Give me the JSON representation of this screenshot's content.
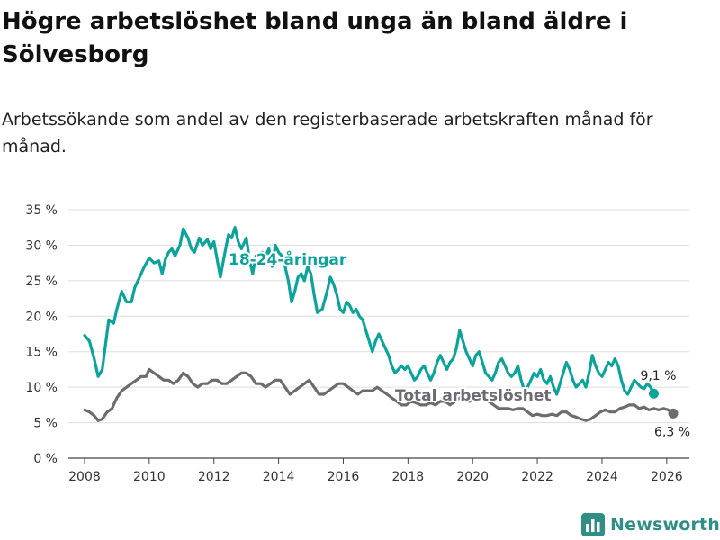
{
  "title": "Högre arbetslöshet bland unga än bland äldre i Sölvesborg",
  "subtitle": "Arbetssökande som andel av den registerbaserade arbetskraften månad för månad.",
  "brand": {
    "name": "Newsworthy",
    "icon": "bar-chart-logo-icon"
  },
  "colors": {
    "youth": "#0ca39a",
    "total": "#6d6a72",
    "axis": "#444444",
    "grid": "#dddddd",
    "brand": "#2f8f86"
  },
  "chart_data": {
    "type": "line",
    "title": "",
    "xlabel": "",
    "ylabel": "",
    "ylim": [
      0,
      35
    ],
    "xlim": [
      2007.5,
      2026.7
    ],
    "y_ticks": [
      0,
      5,
      10,
      15,
      20,
      25,
      30,
      35
    ],
    "y_tick_labels": [
      "0 %",
      "5 %",
      "10 %",
      "15 %",
      "20 %",
      "25 %",
      "30 %",
      "35 %"
    ],
    "x_ticks": [
      2008,
      2010,
      2012,
      2014,
      2016,
      2018,
      2020,
      2022,
      2024,
      2026
    ],
    "x_tick_labels": [
      "2008",
      "2010",
      "2012",
      "2014",
      "2016",
      "2018",
      "2020",
      "2022",
      "2024",
      "2026"
    ],
    "series": [
      {
        "name": "18-24-åringar",
        "label": "18-24-åringar",
        "color": "#0ca39a",
        "end_label": "9,1 %",
        "points": [
          [
            2008.0,
            17.3
          ],
          [
            2008.15,
            16.5
          ],
          [
            2008.3,
            14.0
          ],
          [
            2008.42,
            11.5
          ],
          [
            2008.55,
            12.5
          ],
          [
            2008.65,
            16.0
          ],
          [
            2008.75,
            19.5
          ],
          [
            2008.9,
            19.0
          ],
          [
            2009.0,
            21.0
          ],
          [
            2009.15,
            23.5
          ],
          [
            2009.3,
            22.0
          ],
          [
            2009.45,
            22.0
          ],
          [
            2009.55,
            24.0
          ],
          [
            2009.7,
            25.5
          ],
          [
            2009.85,
            27.0
          ],
          [
            2010.0,
            28.2
          ],
          [
            2010.15,
            27.5
          ],
          [
            2010.3,
            27.8
          ],
          [
            2010.4,
            26.0
          ],
          [
            2010.5,
            28.0
          ],
          [
            2010.6,
            29.0
          ],
          [
            2010.7,
            29.5
          ],
          [
            2010.8,
            28.5
          ],
          [
            2010.95,
            30.0
          ],
          [
            2011.05,
            32.3
          ],
          [
            2011.2,
            31.0
          ],
          [
            2011.3,
            29.5
          ],
          [
            2011.4,
            29.0
          ],
          [
            2011.55,
            31.0
          ],
          [
            2011.65,
            30.0
          ],
          [
            2011.8,
            30.8
          ],
          [
            2011.9,
            29.5
          ],
          [
            2012.0,
            30.5
          ],
          [
            2012.1,
            28.0
          ],
          [
            2012.2,
            25.5
          ],
          [
            2012.3,
            28.0
          ],
          [
            2012.45,
            31.5
          ],
          [
            2012.55,
            31.0
          ],
          [
            2012.65,
            32.5
          ],
          [
            2012.75,
            30.5
          ],
          [
            2012.85,
            29.5
          ],
          [
            2013.0,
            31.0
          ],
          [
            2013.1,
            28.0
          ],
          [
            2013.2,
            26.0
          ],
          [
            2013.3,
            28.5
          ],
          [
            2013.4,
            28.8
          ],
          [
            2013.5,
            29.0
          ],
          [
            2013.6,
            28.5
          ],
          [
            2013.7,
            29.5
          ],
          [
            2013.8,
            27.0
          ],
          [
            2013.9,
            30.0
          ],
          [
            2014.0,
            29.0
          ],
          [
            2014.1,
            28.5
          ],
          [
            2014.2,
            27.0
          ],
          [
            2014.3,
            25.0
          ],
          [
            2014.4,
            22.0
          ],
          [
            2014.5,
            23.5
          ],
          [
            2014.6,
            25.5
          ],
          [
            2014.7,
            26.0
          ],
          [
            2014.8,
            25.0
          ],
          [
            2014.9,
            27.0
          ],
          [
            2015.0,
            26.0
          ],
          [
            2015.1,
            23.0
          ],
          [
            2015.2,
            20.5
          ],
          [
            2015.35,
            21.0
          ],
          [
            2015.5,
            23.5
          ],
          [
            2015.6,
            25.5
          ],
          [
            2015.7,
            24.5
          ],
          [
            2015.8,
            23.0
          ],
          [
            2015.9,
            21.0
          ],
          [
            2016.0,
            20.5
          ],
          [
            2016.1,
            22.0
          ],
          [
            2016.2,
            21.5
          ],
          [
            2016.3,
            20.5
          ],
          [
            2016.4,
            21.0
          ],
          [
            2016.5,
            20.0
          ],
          [
            2016.6,
            19.5
          ],
          [
            2016.7,
            18.0
          ],
          [
            2016.8,
            16.5
          ],
          [
            2016.9,
            15.0
          ],
          [
            2017.0,
            16.5
          ],
          [
            2017.1,
            17.5
          ],
          [
            2017.2,
            16.5
          ],
          [
            2017.3,
            15.5
          ],
          [
            2017.4,
            14.5
          ],
          [
            2017.5,
            13.0
          ],
          [
            2017.6,
            12.0
          ],
          [
            2017.7,
            12.5
          ],
          [
            2017.8,
            13.0
          ],
          [
            2017.9,
            12.5
          ],
          [
            2018.0,
            13.0
          ],
          [
            2018.1,
            12.0
          ],
          [
            2018.2,
            11.0
          ],
          [
            2018.3,
            11.5
          ],
          [
            2018.4,
            12.5
          ],
          [
            2018.5,
            13.0
          ],
          [
            2018.6,
            12.0
          ],
          [
            2018.7,
            11.0
          ],
          [
            2018.8,
            12.0
          ],
          [
            2018.9,
            13.5
          ],
          [
            2019.0,
            14.5
          ],
          [
            2019.1,
            13.5
          ],
          [
            2019.2,
            12.5
          ],
          [
            2019.3,
            13.5
          ],
          [
            2019.4,
            14.0
          ],
          [
            2019.5,
            15.5
          ],
          [
            2019.6,
            18.0
          ],
          [
            2019.7,
            16.5
          ],
          [
            2019.8,
            15.0
          ],
          [
            2019.9,
            14.0
          ],
          [
            2020.0,
            13.0
          ],
          [
            2020.1,
            14.5
          ],
          [
            2020.2,
            15.0
          ],
          [
            2020.3,
            13.5
          ],
          [
            2020.4,
            12.0
          ],
          [
            2020.5,
            11.5
          ],
          [
            2020.6,
            11.0
          ],
          [
            2020.7,
            12.0
          ],
          [
            2020.8,
            13.5
          ],
          [
            2020.9,
            14.0
          ],
          [
            2021.0,
            13.0
          ],
          [
            2021.1,
            12.0
          ],
          [
            2021.2,
            11.5
          ],
          [
            2021.3,
            12.0
          ],
          [
            2021.4,
            13.0
          ],
          [
            2021.5,
            11.0
          ],
          [
            2021.6,
            9.5
          ],
          [
            2021.7,
            10.0
          ],
          [
            2021.8,
            11.0
          ],
          [
            2021.9,
            12.0
          ],
          [
            2022.0,
            11.5
          ],
          [
            2022.1,
            12.5
          ],
          [
            2022.2,
            11.0
          ],
          [
            2022.3,
            10.5
          ],
          [
            2022.4,
            11.5
          ],
          [
            2022.5,
            10.0
          ],
          [
            2022.6,
            9.0
          ],
          [
            2022.7,
            10.5
          ],
          [
            2022.8,
            12.0
          ],
          [
            2022.9,
            13.5
          ],
          [
            2023.0,
            12.5
          ],
          [
            2023.1,
            11.0
          ],
          [
            2023.2,
            10.0
          ],
          [
            2023.3,
            10.5
          ],
          [
            2023.4,
            11.0
          ],
          [
            2023.5,
            10.0
          ],
          [
            2023.6,
            12.0
          ],
          [
            2023.7,
            14.5
          ],
          [
            2023.8,
            13.0
          ],
          [
            2023.9,
            12.0
          ],
          [
            2024.0,
            11.5
          ],
          [
            2024.1,
            12.5
          ],
          [
            2024.2,
            13.5
          ],
          [
            2024.3,
            13.0
          ],
          [
            2024.4,
            14.0
          ],
          [
            2024.5,
            13.0
          ],
          [
            2024.6,
            11.0
          ],
          [
            2024.7,
            9.5
          ],
          [
            2024.8,
            9.0
          ],
          [
            2024.9,
            10.0
          ],
          [
            2025.0,
            11.0
          ],
          [
            2025.1,
            10.5
          ],
          [
            2025.2,
            10.0
          ],
          [
            2025.3,
            9.8
          ],
          [
            2025.4,
            10.5
          ],
          [
            2025.5,
            10.0
          ],
          [
            2025.6,
            9.1
          ]
        ]
      },
      {
        "name": "Total arbetslöshet",
        "label": "Total arbetslöshet",
        "color": "#6d6a72",
        "end_label": "6,3 %",
        "points": [
          [
            2008.0,
            6.8
          ],
          [
            2008.15,
            6.5
          ],
          [
            2008.3,
            6.0
          ],
          [
            2008.42,
            5.3
          ],
          [
            2008.55,
            5.5
          ],
          [
            2008.7,
            6.5
          ],
          [
            2008.85,
            7.0
          ],
          [
            2009.0,
            8.5
          ],
          [
            2009.15,
            9.5
          ],
          [
            2009.3,
            10.0
          ],
          [
            2009.45,
            10.5
          ],
          [
            2009.6,
            11.0
          ],
          [
            2009.75,
            11.5
          ],
          [
            2009.9,
            11.5
          ],
          [
            2010.0,
            12.5
          ],
          [
            2010.15,
            12.0
          ],
          [
            2010.3,
            11.5
          ],
          [
            2010.45,
            11.0
          ],
          [
            2010.6,
            11.0
          ],
          [
            2010.75,
            10.5
          ],
          [
            2010.9,
            11.0
          ],
          [
            2011.05,
            12.0
          ],
          [
            2011.2,
            11.5
          ],
          [
            2011.35,
            10.5
          ],
          [
            2011.5,
            10.0
          ],
          [
            2011.65,
            10.5
          ],
          [
            2011.8,
            10.5
          ],
          [
            2011.95,
            11.0
          ],
          [
            2012.1,
            11.0
          ],
          [
            2012.25,
            10.5
          ],
          [
            2012.4,
            10.5
          ],
          [
            2012.55,
            11.0
          ],
          [
            2012.7,
            11.5
          ],
          [
            2012.85,
            12.0
          ],
          [
            2013.0,
            12.0
          ],
          [
            2013.15,
            11.5
          ],
          [
            2013.3,
            10.5
          ],
          [
            2013.45,
            10.5
          ],
          [
            2013.6,
            10.0
          ],
          [
            2013.75,
            10.5
          ],
          [
            2013.9,
            11.0
          ],
          [
            2014.05,
            11.0
          ],
          [
            2014.2,
            10.0
          ],
          [
            2014.35,
            9.0
          ],
          [
            2014.5,
            9.5
          ],
          [
            2014.65,
            10.0
          ],
          [
            2014.8,
            10.5
          ],
          [
            2014.95,
            11.0
          ],
          [
            2015.1,
            10.0
          ],
          [
            2015.25,
            9.0
          ],
          [
            2015.4,
            9.0
          ],
          [
            2015.55,
            9.5
          ],
          [
            2015.7,
            10.0
          ],
          [
            2015.85,
            10.5
          ],
          [
            2016.0,
            10.5
          ],
          [
            2016.15,
            10.0
          ],
          [
            2016.3,
            9.5
          ],
          [
            2016.45,
            9.0
          ],
          [
            2016.6,
            9.5
          ],
          [
            2016.75,
            9.5
          ],
          [
            2016.9,
            9.5
          ],
          [
            2017.05,
            10.0
          ],
          [
            2017.2,
            9.5
          ],
          [
            2017.35,
            9.0
          ],
          [
            2017.5,
            8.5
          ],
          [
            2017.65,
            8.0
          ],
          [
            2017.8,
            7.5
          ],
          [
            2017.95,
            7.5
          ],
          [
            2018.1,
            8.0
          ],
          [
            2018.25,
            7.8
          ],
          [
            2018.4,
            7.5
          ],
          [
            2018.55,
            7.5
          ],
          [
            2018.7,
            7.8
          ],
          [
            2018.85,
            7.5
          ],
          [
            2019.0,
            8.0
          ],
          [
            2019.15,
            8.0
          ],
          [
            2019.3,
            7.5
          ],
          [
            2019.45,
            8.0
          ],
          [
            2019.6,
            8.5
          ],
          [
            2019.75,
            8.5
          ],
          [
            2019.9,
            8.0
          ],
          [
            2020.05,
            8.5
          ],
          [
            2020.2,
            9.0
          ],
          [
            2020.35,
            8.5
          ],
          [
            2020.5,
            8.0
          ],
          [
            2020.65,
            7.5
          ],
          [
            2020.8,
            7.0
          ],
          [
            2020.95,
            7.0
          ],
          [
            2021.1,
            7.0
          ],
          [
            2021.25,
            6.8
          ],
          [
            2021.4,
            7.0
          ],
          [
            2021.55,
            7.0
          ],
          [
            2021.7,
            6.5
          ],
          [
            2021.85,
            6.0
          ],
          [
            2022.0,
            6.2
          ],
          [
            2022.15,
            6.0
          ],
          [
            2022.3,
            6.0
          ],
          [
            2022.45,
            6.2
          ],
          [
            2022.6,
            6.0
          ],
          [
            2022.75,
            6.5
          ],
          [
            2022.9,
            6.5
          ],
          [
            2023.05,
            6.0
          ],
          [
            2023.2,
            5.8
          ],
          [
            2023.35,
            5.5
          ],
          [
            2023.5,
            5.3
          ],
          [
            2023.65,
            5.5
          ],
          [
            2023.8,
            6.0
          ],
          [
            2023.95,
            6.5
          ],
          [
            2024.1,
            6.8
          ],
          [
            2024.25,
            6.5
          ],
          [
            2024.4,
            6.5
          ],
          [
            2024.55,
            7.0
          ],
          [
            2024.7,
            7.2
          ],
          [
            2024.85,
            7.5
          ],
          [
            2025.0,
            7.5
          ],
          [
            2025.15,
            7.0
          ],
          [
            2025.3,
            7.2
          ],
          [
            2025.45,
            6.8
          ],
          [
            2025.6,
            7.0
          ],
          [
            2025.75,
            6.8
          ],
          [
            2025.9,
            7.0
          ],
          [
            2026.05,
            6.8
          ],
          [
            2026.2,
            6.3
          ]
        ]
      }
    ]
  }
}
